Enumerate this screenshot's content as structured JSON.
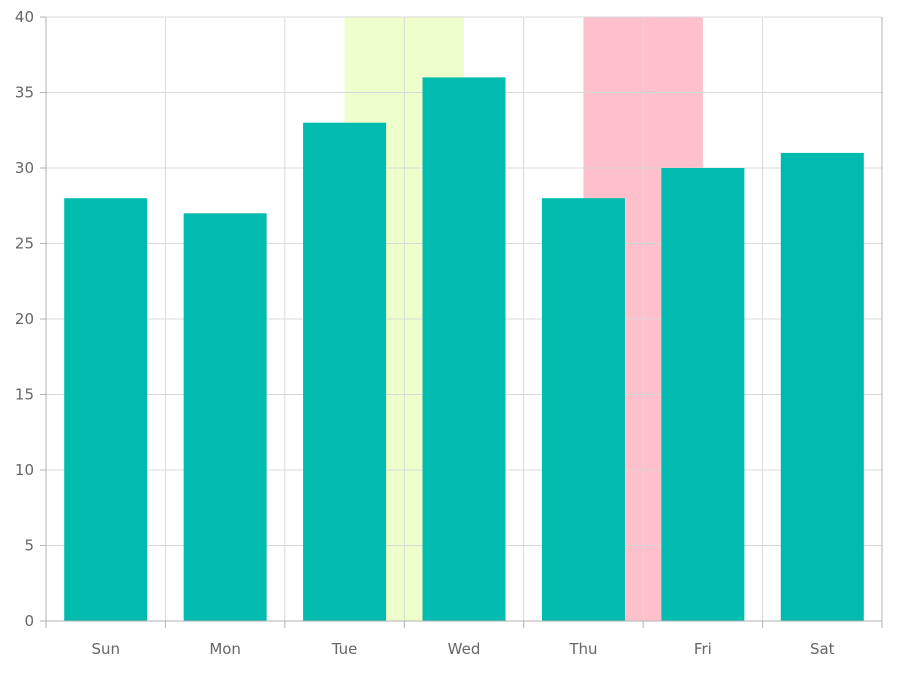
{
  "chart_data": {
    "type": "bar",
    "title": "",
    "xlabel": "",
    "ylabel": "",
    "categories": [
      "Sun",
      "Mon",
      "Tue",
      "Wed",
      "Thu",
      "Fri",
      "Sat"
    ],
    "series": [
      {
        "values": [
          28,
          27,
          33,
          36,
          28,
          30,
          31
        ],
        "color": "#00bbae"
      }
    ],
    "ylim": [
      0,
      40
    ],
    "yticks": [
      0,
      5,
      10,
      15,
      20,
      25,
      30,
      35,
      40
    ],
    "grid": true,
    "legend": "none",
    "highlight_bands": [
      {
        "from_category": "Tue",
        "to_category": "Wed",
        "color": "#eeffcc"
      },
      {
        "from_category": "Thu",
        "to_category": "Fri",
        "color": "#ffc0cb"
      }
    ]
  },
  "colors": {
    "grid": "#d9d9d9",
    "axis": "#b3b3b3",
    "tick_text": "#666666"
  }
}
